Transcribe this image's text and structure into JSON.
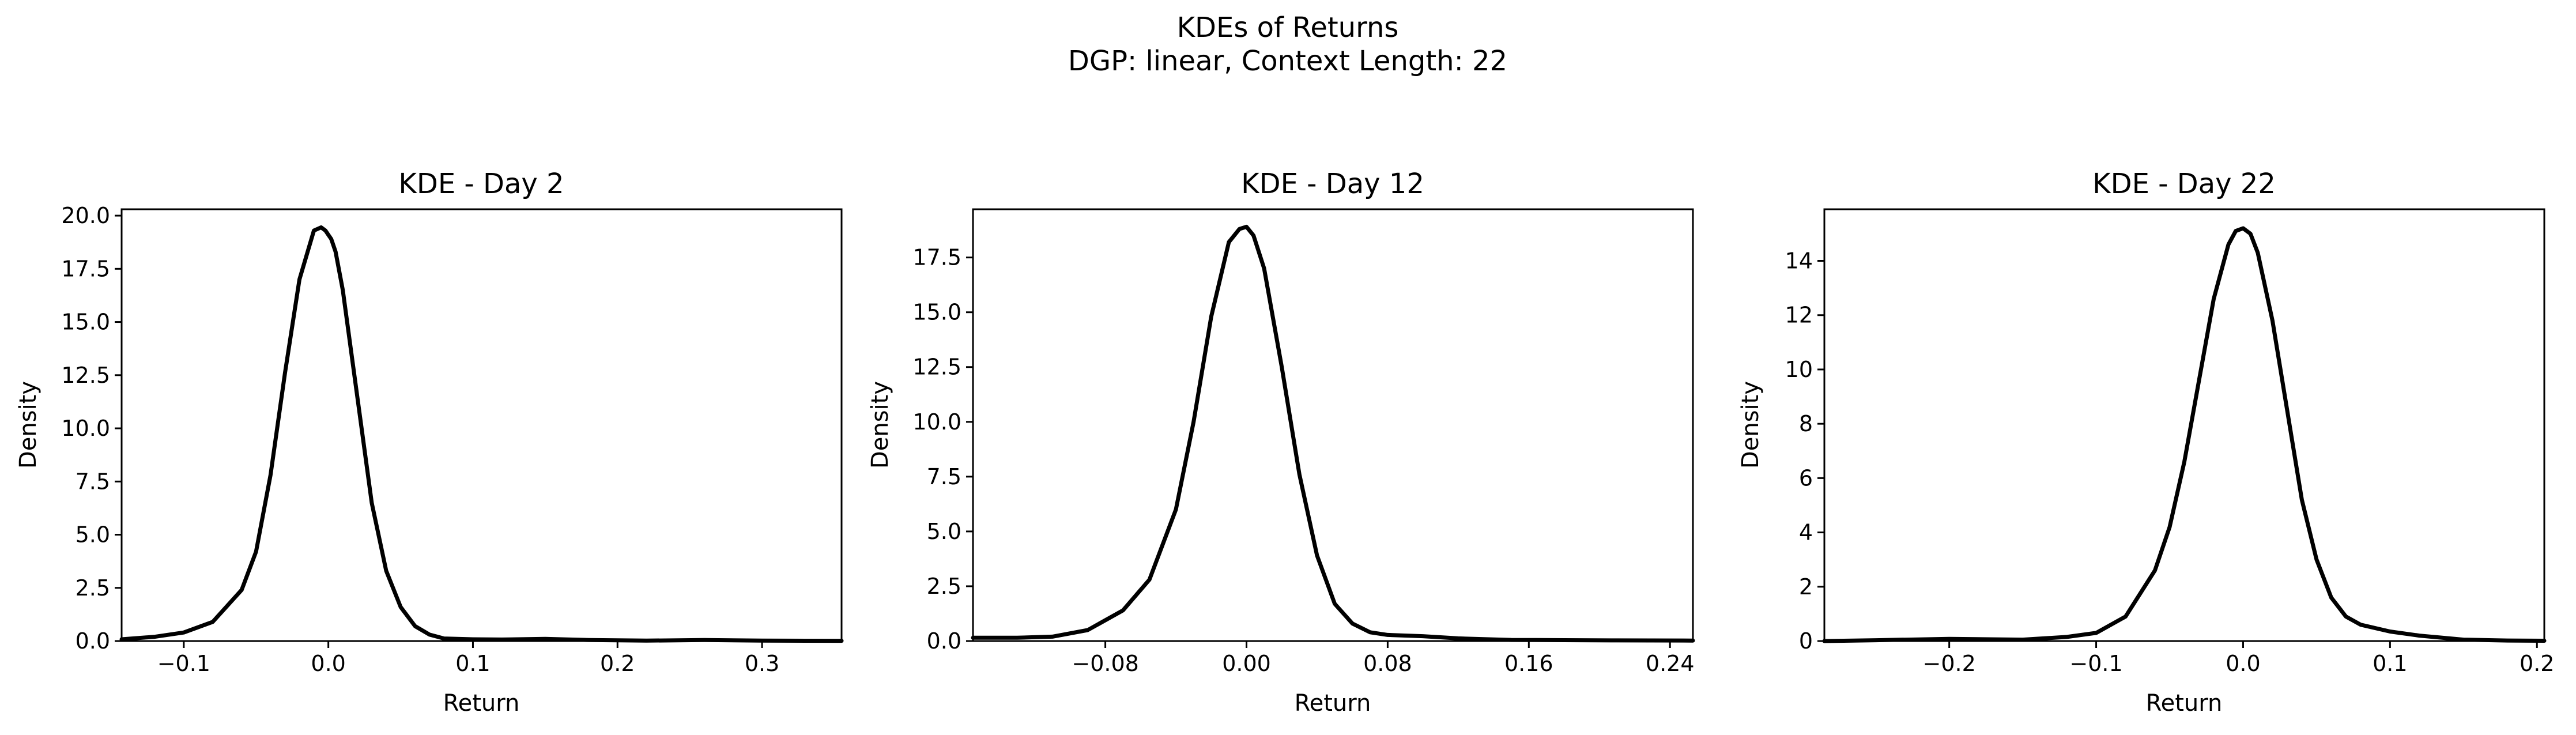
{
  "figure": {
    "title_line1": "KDEs of Returns",
    "title_line2": "DGP: linear, Context Length: 22"
  },
  "chart_data": [
    {
      "type": "line",
      "title": "KDE - Day 2",
      "xlabel": "Return",
      "ylabel": "Density",
      "xlim": [
        -0.143,
        0.355
      ],
      "ylim": [
        0,
        20.3
      ],
      "xticks": [
        -0.1,
        0.0,
        0.1,
        0.2,
        0.3
      ],
      "xtick_labels": [
        "−0.1",
        "0.0",
        "0.1",
        "0.2",
        "0.3"
      ],
      "yticks": [
        0,
        2.5,
        5,
        7.5,
        10,
        12.5,
        15,
        17.5,
        20
      ],
      "ytick_labels": [
        "0.0",
        "2.5",
        "5.0",
        "7.5",
        "10.0",
        "12.5",
        "15.0",
        "17.5",
        "20.0"
      ],
      "grid": false,
      "line_color": "#000000",
      "x": [
        -0.143,
        -0.12,
        -0.1,
        -0.08,
        -0.06,
        -0.05,
        -0.04,
        -0.03,
        -0.02,
        -0.01,
        -0.005,
        -0.002,
        0.0,
        0.002,
        0.005,
        0.01,
        0.02,
        0.03,
        0.04,
        0.05,
        0.06,
        0.07,
        0.08,
        0.1,
        0.12,
        0.15,
        0.18,
        0.22,
        0.26,
        0.3,
        0.355
      ],
      "y": [
        0.08,
        0.2,
        0.4,
        0.9,
        2.4,
        4.2,
        7.8,
        12.6,
        17.0,
        19.3,
        19.45,
        19.3,
        19.1,
        18.9,
        18.3,
        16.5,
        11.5,
        6.5,
        3.3,
        1.6,
        0.7,
        0.3,
        0.12,
        0.08,
        0.07,
        0.1,
        0.05,
        0.02,
        0.05,
        0.02,
        0.01
      ]
    },
    {
      "type": "line",
      "title": "KDE - Day 12",
      "xlabel": "Return",
      "ylabel": "Density",
      "xlim": [
        -0.155,
        0.253
      ],
      "ylim": [
        0,
        19.7
      ],
      "xticks": [
        -0.08,
        0.0,
        0.08,
        0.16,
        0.24
      ],
      "xtick_labels": [
        "−0.08",
        "0.00",
        "0.08",
        "0.16",
        "0.24"
      ],
      "yticks": [
        0,
        2.5,
        5,
        7.5,
        10,
        12.5,
        15,
        17.5
      ],
      "ytick_labels": [
        "0.0",
        "2.5",
        "5.0",
        "7.5",
        "10.0",
        "12.5",
        "15.0",
        "17.5"
      ],
      "grid": false,
      "line_color": "#000000",
      "x": [
        -0.155,
        -0.13,
        -0.11,
        -0.09,
        -0.07,
        -0.055,
        -0.04,
        -0.03,
        -0.02,
        -0.01,
        -0.004,
        0.0,
        0.004,
        0.01,
        0.02,
        0.03,
        0.04,
        0.05,
        0.06,
        0.07,
        0.08,
        0.1,
        0.12,
        0.15,
        0.18,
        0.21,
        0.253
      ],
      "y": [
        0.15,
        0.15,
        0.2,
        0.5,
        1.4,
        2.8,
        6.0,
        10.0,
        14.8,
        18.2,
        18.8,
        18.9,
        18.5,
        17.0,
        12.5,
        7.6,
        3.9,
        1.7,
        0.8,
        0.4,
        0.28,
        0.22,
        0.12,
        0.05,
        0.04,
        0.03,
        0.02
      ]
    },
    {
      "type": "line",
      "title": "KDE - Day 22",
      "xlabel": "Return",
      "ylabel": "Density",
      "xlim": [
        -0.285,
        0.205
      ],
      "ylim": [
        0,
        15.9
      ],
      "xticks": [
        -0.2,
        -0.1,
        0.0,
        0.1,
        0.2
      ],
      "xtick_labels": [
        "−0.2",
        "−0.1",
        "0.0",
        "0.1",
        "0.2"
      ],
      "yticks": [
        0,
        2,
        4,
        6,
        8,
        10,
        12,
        14
      ],
      "ytick_labels": [
        "0",
        "2",
        "4",
        "6",
        "8",
        "10",
        "12",
        "14"
      ],
      "grid": false,
      "line_color": "#000000",
      "x": [
        -0.285,
        -0.25,
        -0.2,
        -0.15,
        -0.12,
        -0.1,
        -0.08,
        -0.06,
        -0.05,
        -0.04,
        -0.03,
        -0.02,
        -0.01,
        -0.005,
        0.0,
        0.005,
        0.01,
        0.02,
        0.03,
        0.04,
        0.05,
        0.06,
        0.07,
        0.08,
        0.1,
        0.12,
        0.15,
        0.18,
        0.205
      ],
      "y": [
        0.0,
        0.03,
        0.08,
        0.05,
        0.15,
        0.3,
        0.9,
        2.6,
        4.2,
        6.6,
        9.6,
        12.6,
        14.6,
        15.1,
        15.2,
        15.0,
        14.3,
        11.8,
        8.5,
        5.2,
        3.0,
        1.6,
        0.9,
        0.6,
        0.35,
        0.2,
        0.05,
        0.02,
        0.01
      ]
    }
  ]
}
